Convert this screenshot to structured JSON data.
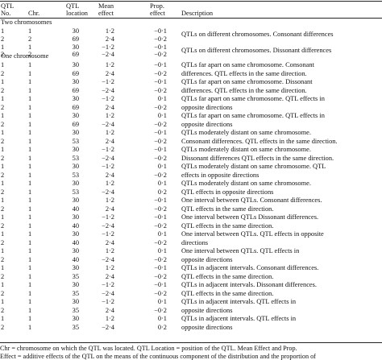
{
  "header": {
    "qtl_no": [
      "QTL",
      "No."
    ],
    "chr": "Chr.",
    "location": [
      "QTL",
      "location"
    ],
    "mean": [
      "Mean",
      "effect"
    ],
    "prop": [
      "Prop.",
      "effect"
    ],
    "desc": "Description"
  },
  "sections": {
    "two": "Two chromosomes",
    "one": "One chromosome"
  },
  "rows": [
    {
      "qtl": "1",
      "chr": "1",
      "loc": "30",
      "mean": "1·2",
      "prop": "−0·1"
    },
    {
      "qtl": "2",
      "chr": "2",
      "loc": "69",
      "mean": "2·4",
      "prop": "−0·2"
    },
    {
      "qtl": "1",
      "chr": "1",
      "loc": "30",
      "mean": "−1·2",
      "prop": "−0·1"
    },
    {
      "qtl": "2",
      "chr": "2",
      "loc": "69",
      "mean": "−2·4",
      "prop": "−0·2"
    },
    {
      "qtl": "1",
      "chr": "1",
      "loc": "30",
      "mean": "1·2",
      "prop": "−0·1"
    },
    {
      "qtl": "2",
      "chr": "1",
      "loc": "69",
      "mean": "2·4",
      "prop": "−0·2"
    },
    {
      "qtl": "1",
      "chr": "1",
      "loc": "30",
      "mean": "−1·2",
      "prop": "−0·1"
    },
    {
      "qtl": "2",
      "chr": "1",
      "loc": "69",
      "mean": "−2·4",
      "prop": "−0·2"
    },
    {
      "qtl": "1",
      "chr": "1",
      "loc": "30",
      "mean": "−1·2",
      "prop": "0·1"
    },
    {
      "qtl": "2",
      "chr": "1",
      "loc": "69",
      "mean": "2·4",
      "prop": "−0·2"
    },
    {
      "qtl": "1",
      "chr": "1",
      "loc": "30",
      "mean": "1·2",
      "prop": "0·1"
    },
    {
      "qtl": "2",
      "chr": "1",
      "loc": "69",
      "mean": "−2·4",
      "prop": "−0·2"
    },
    {
      "qtl": "1",
      "chr": "1",
      "loc": "30",
      "mean": "1·2",
      "prop": "−0·1"
    },
    {
      "qtl": "2",
      "chr": "1",
      "loc": "53",
      "mean": "2·4",
      "prop": "−0·2"
    },
    {
      "qtl": "1",
      "chr": "1",
      "loc": "30",
      "mean": "−1·2",
      "prop": "−0·1"
    },
    {
      "qtl": "2",
      "chr": "1",
      "loc": "53",
      "mean": "−2·4",
      "prop": "−0·2"
    },
    {
      "qtl": "1",
      "chr": "1",
      "loc": "30",
      "mean": "−1·2",
      "prop": "0·1"
    },
    {
      "qtl": "2",
      "chr": "1",
      "loc": "53",
      "mean": "2·4",
      "prop": "−0·2"
    },
    {
      "qtl": "1",
      "chr": "1",
      "loc": "30",
      "mean": "1·2",
      "prop": "0·1"
    },
    {
      "qtl": "2",
      "chr": "1",
      "loc": "53",
      "mean": "−2·4",
      "prop": "0·2"
    },
    {
      "qtl": "1",
      "chr": "1",
      "loc": "30",
      "mean": "1·2",
      "prop": "−0·1"
    },
    {
      "qtl": "2",
      "chr": "1",
      "loc": "40",
      "mean": "2·4",
      "prop": "−0·2"
    },
    {
      "qtl": "1",
      "chr": "1",
      "loc": "30",
      "mean": "−1·2",
      "prop": "−0·1"
    },
    {
      "qtl": "2",
      "chr": "1",
      "loc": "40",
      "mean": "−2·4",
      "prop": "−0·2"
    },
    {
      "qtl": "1",
      "chr": "1",
      "loc": "30",
      "mean": "−1·2",
      "prop": "0·1"
    },
    {
      "qtl": "2",
      "chr": "1",
      "loc": "40",
      "mean": "2·4",
      "prop": "−0·2"
    },
    {
      "qtl": "1",
      "chr": "1",
      "loc": "30",
      "mean": "1·2",
      "prop": "0·1"
    },
    {
      "qtl": "2",
      "chr": "1",
      "loc": "40",
      "mean": "−2·4",
      "prop": "−0·2"
    },
    {
      "qtl": "1",
      "chr": "1",
      "loc": "30",
      "mean": "1·2",
      "prop": "−0·1"
    },
    {
      "qtl": "2",
      "chr": "1",
      "loc": "35",
      "mean": "2·4",
      "prop": "−0·2"
    },
    {
      "qtl": "1",
      "chr": "1",
      "loc": "30",
      "mean": "−1·2",
      "prop": "−0·1"
    },
    {
      "qtl": "2",
      "chr": "1",
      "loc": "35",
      "mean": "−2·4",
      "prop": "−0·2"
    },
    {
      "qtl": "1",
      "chr": "1",
      "loc": "30",
      "mean": "−1·2",
      "prop": "0·1"
    },
    {
      "qtl": "2",
      "chr": "1",
      "loc": "35",
      "mean": "2·4",
      "prop": "−0·2"
    },
    {
      "qtl": "1",
      "chr": "1",
      "loc": "30",
      "mean": "1·2",
      "prop": "0·1"
    },
    {
      "qtl": "2",
      "chr": "1",
      "loc": "35",
      "mean": "−2·4",
      "prop": "0·2"
    }
  ],
  "descriptions": [
    {
      "row": 0,
      "lines": [
        "QTLs on different chromosomes. Consonant differences"
      ]
    },
    {
      "row": 2,
      "lines": [
        "QTLs on different chromosomes. Dissonant differences"
      ]
    },
    {
      "row": 4,
      "lines": [
        "QTLs far apart on same chromosome. Consonant",
        "differences. QTL effects in the same direction."
      ]
    },
    {
      "row": 6,
      "lines": [
        "QTLs far apart on same chromosome. Dissonant",
        "differences. QTL effects in the same direction."
      ]
    },
    {
      "row": 8,
      "lines": [
        "QTLs far apart on same chromosome. QTL effects in",
        "opposite directions"
      ]
    },
    {
      "row": 10,
      "lines": [
        "QTLs far apart on same chromosome. QTL effects in",
        "opposite directions"
      ]
    },
    {
      "row": 12,
      "lines": [
        "QTLs moderately distant on same chromosome.",
        "Consonant differences. QTL effects in the same direction."
      ]
    },
    {
      "row": 14,
      "lines": [
        "QTLs moderately distant on same chromosome.",
        "Dissonant differences QTL effects in the same direction."
      ]
    },
    {
      "row": 16,
      "lines": [
        "QTLs moderately distant on same chromosome. QTL",
        "effects in opposite directions"
      ]
    },
    {
      "row": 18,
      "lines": [
        "QTLs moderately distant on same chromosome.",
        "QTL effects in opposite directions"
      ]
    },
    {
      "row": 20,
      "lines": [
        "One interval between QTLs. Consonant differences.",
        "QTL effects in the same direction."
      ]
    },
    {
      "row": 22,
      "lines": [
        "One interval between QTLs Dissonant differences.",
        "QTL effects in the same direction."
      ]
    },
    {
      "row": 24,
      "lines": [
        "One interval between QTLs. QTL effects in opposite",
        "directions"
      ]
    },
    {
      "row": 26,
      "lines": [
        "One interval between QTLs. QTL effects in",
        "opposite directions"
      ]
    },
    {
      "row": 28,
      "lines": [
        "QTLs in adjacent intervals. Consonant differences.",
        "QTL effects in the same direction."
      ]
    },
    {
      "row": 30,
      "lines": [
        "QTLs in adjacent intervals. Dissonant differences.",
        "QTL effects in the same direction."
      ]
    },
    {
      "row": 32,
      "lines": [
        "QTLs in adjacent intervals. QTL effects in",
        "opposite directions"
      ]
    },
    {
      "row": 34,
      "lines": [
        "QTLs in adjacent intervals. QTL effects in",
        "opposite directions"
      ]
    }
  ],
  "footnote": [
    "Chr = chromosome on which the QTL was located. QTL Location = position of the QTL. Mean Effect and Prop.",
    "Effect = additive effects of the QTL on the means of the continuous component of the distribution and the proportion of"
  ]
}
